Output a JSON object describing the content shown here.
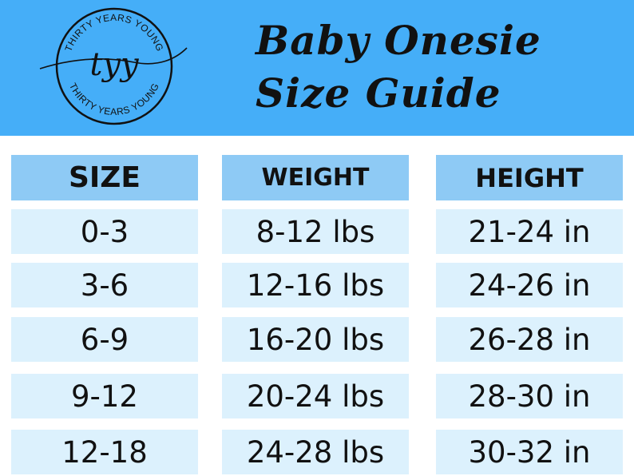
{
  "logo": {
    "monogram": "tyy",
    "ring_text_top": "THIRTY YEARS YOUNG",
    "ring_text_bottom": "THIRTY YEARS YOUNG"
  },
  "title": {
    "line1": "Baby Onesie",
    "line2": "Size Guide"
  },
  "table": {
    "headers": {
      "size": "SIZE",
      "weight": "WEIGHT",
      "height": "HEIGHT"
    },
    "rows": [
      {
        "size": "0-3",
        "weight": "8-12 lbs",
        "height": "21-24 in"
      },
      {
        "size": "3-6",
        "weight": "12-16 lbs",
        "height": "24-26 in"
      },
      {
        "size": "6-9",
        "weight": "16-20 lbs",
        "height": "26-28 in"
      },
      {
        "size": "9-12",
        "weight": "20-24 lbs",
        "height": "28-30 in"
      },
      {
        "size": "12-18",
        "weight": "24-28 lbs",
        "height": "30-32 in"
      }
    ]
  },
  "colors": {
    "banner": "#45aef8",
    "header_cell": "#8ecaf5",
    "row_cell": "#dcf1fd",
    "text": "#111111"
  }
}
